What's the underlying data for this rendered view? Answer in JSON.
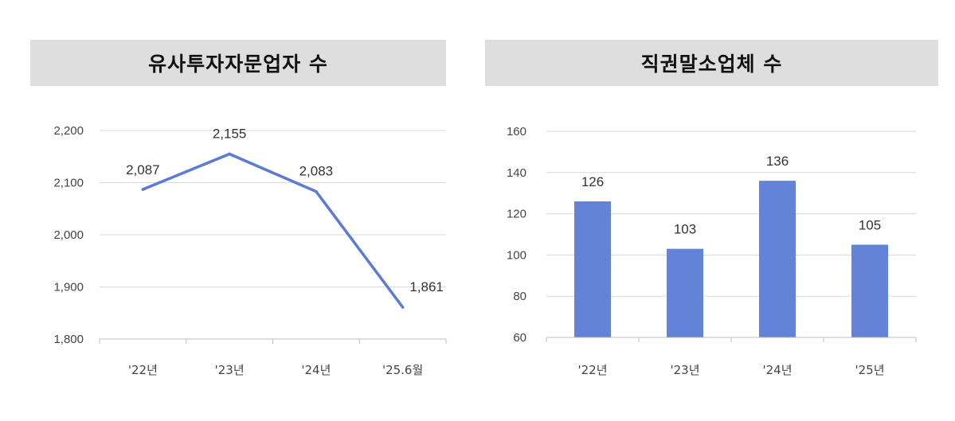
{
  "chart_data": [
    {
      "type": "line",
      "title": "유사투자자문업자 수",
      "categories": [
        "'22년",
        "'23년",
        "'24년",
        "'25.6월"
      ],
      "values": [
        2087,
        2155,
        2083,
        1861
      ],
      "value_labels": [
        "2,087",
        "2,155",
        "2,083",
        "1,861"
      ],
      "ylim": [
        1800,
        2200
      ],
      "yticks": [
        1800,
        1900,
        2000,
        2100,
        2200
      ],
      "ytick_labels": [
        "1,800",
        "1,900",
        "2,000",
        "2,100",
        "2,200"
      ],
      "grid": true,
      "color": "#5b7bd5"
    },
    {
      "type": "bar",
      "title": "직권말소업체 수",
      "categories": [
        "'22년",
        "'23년",
        "'24년",
        "'25년"
      ],
      "values": [
        126,
        103,
        136,
        105
      ],
      "value_labels": [
        "126",
        "103",
        "136",
        "105"
      ],
      "ylim": [
        60,
        160
      ],
      "yticks": [
        60,
        80,
        100,
        120,
        140,
        160
      ],
      "ytick_labels": [
        "60",
        "80",
        "100",
        "120",
        "140",
        "160"
      ],
      "grid": true,
      "color": "#6283d8"
    }
  ]
}
